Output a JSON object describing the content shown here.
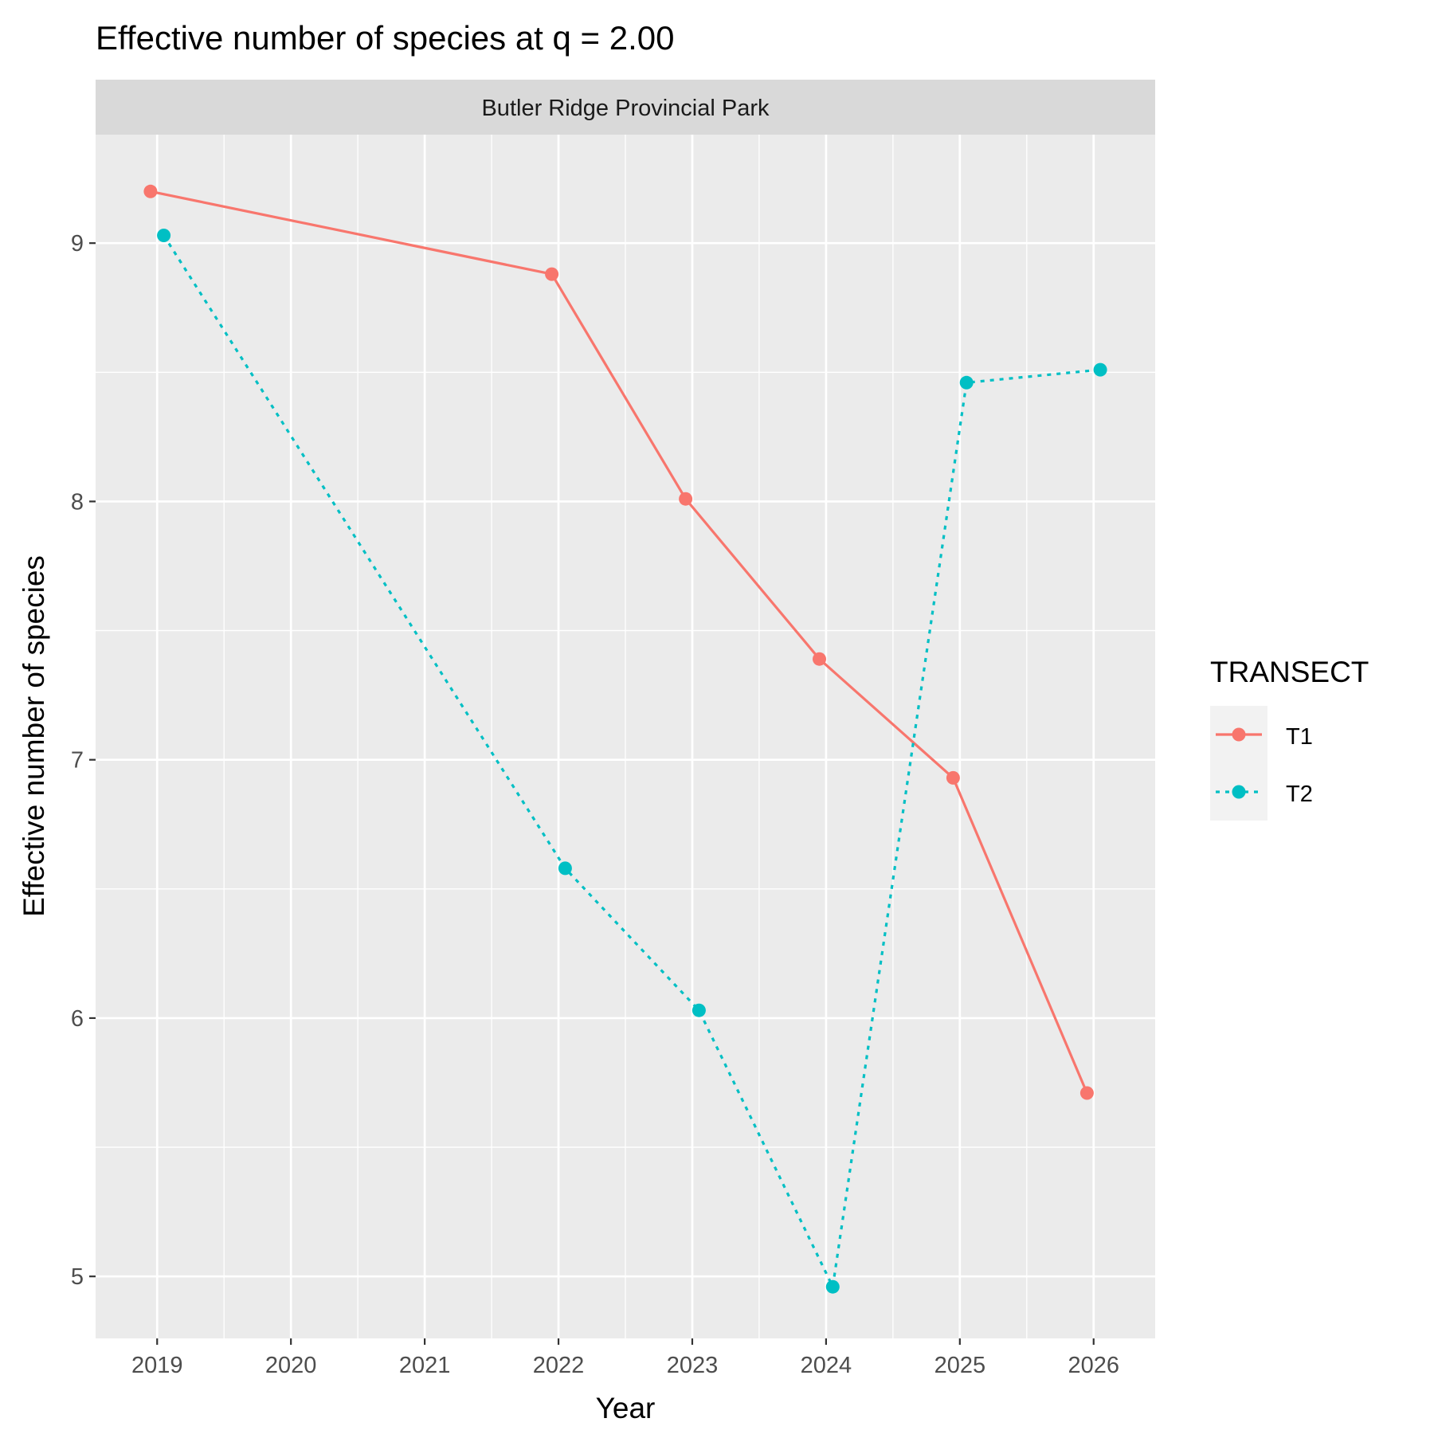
{
  "chart_data": {
    "type": "line",
    "title": "Effective number of species at q = 2.00",
    "facet": "Butler Ridge Provincial Park",
    "xlabel": "Year",
    "ylabel": "Effective number of species",
    "x_ticks": [
      "2019",
      "2020",
      "2021",
      "2022",
      "2023",
      "2024",
      "2025",
      "2026"
    ],
    "y_ticks": [
      "5",
      "6",
      "7",
      "8",
      "9"
    ],
    "xlim": [
      2018.54,
      2026.46
    ],
    "ylim": [
      4.76,
      9.42
    ],
    "grid": true,
    "legend": {
      "title": "TRANSECT",
      "position": "right"
    },
    "series": [
      {
        "name": "T1",
        "color": "#F8766D",
        "linetype": "solid",
        "x": [
          2019,
          2022,
          2023,
          2024,
          2025,
          2026
        ],
        "y": [
          9.2,
          8.88,
          8.01,
          7.39,
          6.93,
          5.71
        ]
      },
      {
        "name": "T2",
        "color": "#00BFC4",
        "linetype": "dotted",
        "x": [
          2019,
          2022,
          2023,
          2024,
          2025,
          2026
        ],
        "y": [
          9.03,
          6.58,
          6.03,
          4.96,
          8.46,
          8.51
        ]
      }
    ]
  }
}
